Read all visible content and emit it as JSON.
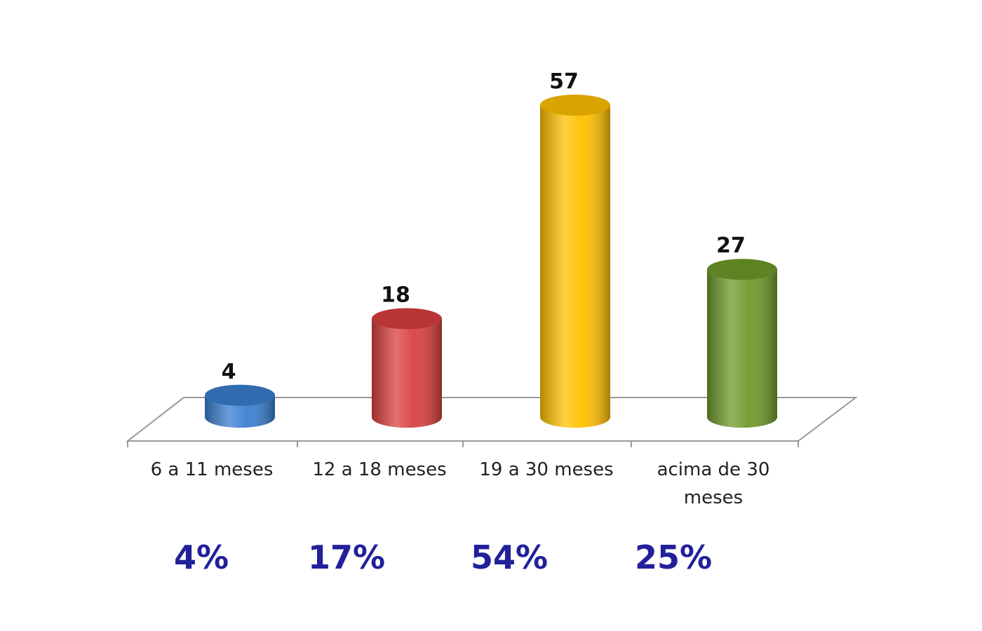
{
  "chart_data": {
    "type": "bar",
    "categories": [
      "6 a 11 meses",
      "12 a 18 meses",
      "19 a 30 meses",
      "acima de 30 meses"
    ],
    "values": [
      4,
      18,
      57,
      27
    ],
    "colors": [
      "#3a7fd0",
      "#d8403f",
      "#ffc000",
      "#6f9a2a"
    ],
    "shares": [
      4,
      17,
      54,
      25
    ],
    "share_labels": [
      "4%",
      "17%",
      "54%",
      "25%"
    ]
  }
}
